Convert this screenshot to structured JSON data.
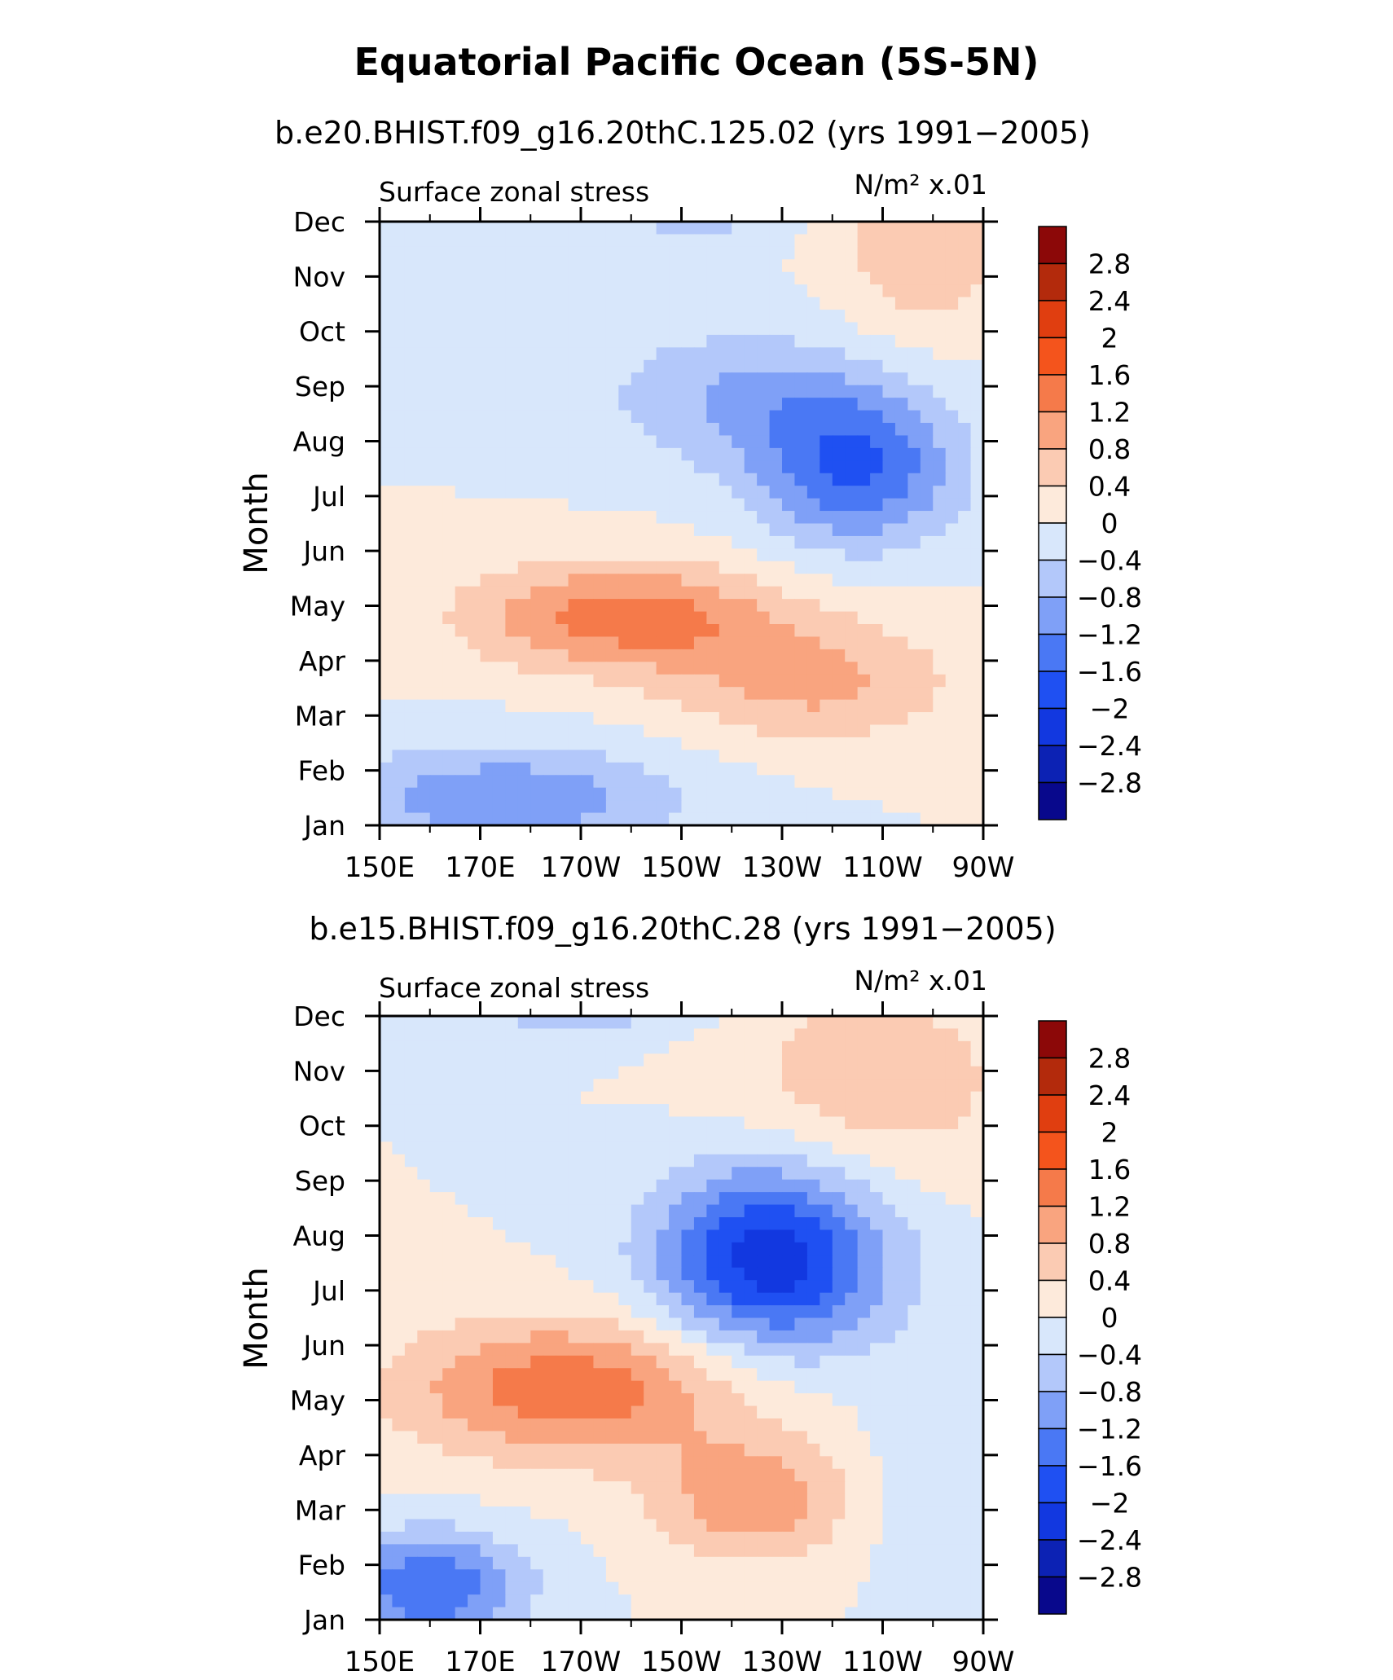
{
  "figure_title": "Equatorial Pacific Ocean (5S-5N)",
  "chart_data": [
    {
      "type": "heatmap",
      "title": "b.e20.BHIST.f09_g16.20thC.125.02 (yrs 1991−2005)",
      "left_label": "Surface zonal stress",
      "right_label": "N/m² x.01",
      "xlabel": "",
      "ylabel": "Month",
      "x_ticklabels": [
        "150E",
        "170E",
        "170W",
        "150W",
        "130W",
        "110W",
        "90W"
      ],
      "x_degrees_east": [
        150,
        170,
        190,
        210,
        230,
        250,
        270
      ],
      "xlim": [
        150,
        270
      ],
      "y_ticklabels": [
        "Jan",
        "Feb",
        "Mar",
        "Apr",
        "May",
        "Jun",
        "Jul",
        "Aug",
        "Sep",
        "Oct",
        "Nov",
        "Dec"
      ],
      "colorbar_labels": [
        "2.8",
        "2.4",
        "2",
        "1.6",
        "1.2",
        "0.8",
        "0.4",
        "0",
        "−0.4",
        "−0.8",
        "−1.2",
        "−1.6",
        "−2",
        "−2.4",
        "−2.8"
      ],
      "levels": [
        -2.8,
        -2.4,
        -2,
        -1.6,
        -1.2,
        -0.8,
        -0.4,
        0,
        0.4,
        0.8,
        1.2,
        1.6,
        2,
        2.4,
        2.8
      ],
      "colors": [
        "#08088c",
        "#0c22b4",
        "#1238e0",
        "#1f50f2",
        "#4a78f4",
        "#7fa0f7",
        "#b3c8fa",
        "#d8e7fb",
        "#fdeadb",
        "#fbcbb3",
        "#f9a47f",
        "#f57a4a",
        "#f4541c",
        "#e03e10",
        "#b32a0c",
        "#8c0808"
      ],
      "features": [
        {
          "x": 162,
          "y": 11.6,
          "sx": 10,
          "sy": 0.5,
          "amp": -0.6
        },
        {
          "x": 212,
          "y": 11.3,
          "sx": 12,
          "sy": 0.6,
          "amp": -0.6
        },
        {
          "x": 258,
          "y": 10.5,
          "sx": 12,
          "sy": 1.2,
          "amp": 0.7
        },
        {
          "x": 222,
          "y": 7.8,
          "sx": 20,
          "sy": 0.9,
          "amp": -0.8
        },
        {
          "x": 245,
          "y": 6.5,
          "sx": 14,
          "sy": 1.0,
          "amp": -1.6
        },
        {
          "x": 198,
          "y": 3.8,
          "sx": 22,
          "sy": 0.7,
          "amp": 1.4
        },
        {
          "x": 236,
          "y": 2.6,
          "sx": 20,
          "sy": 0.8,
          "amp": 0.9
        },
        {
          "x": 175,
          "y": 0.5,
          "sx": 25,
          "sy": 0.7,
          "amp": -1.1
        }
      ]
    },
    {
      "type": "heatmap",
      "title": "b.e15.BHIST.f09_g16.20thC.28 (yrs 1991−2005)",
      "left_label": "Surface zonal stress",
      "right_label": "N/m² x.01",
      "xlabel": "",
      "ylabel": "Month",
      "x_ticklabels": [
        "150E",
        "170E",
        "170W",
        "150W",
        "130W",
        "110W",
        "90W"
      ],
      "x_degrees_east": [
        150,
        170,
        190,
        210,
        230,
        250,
        270
      ],
      "xlim": [
        150,
        270
      ],
      "y_ticklabels": [
        "Jan",
        "Feb",
        "Mar",
        "Apr",
        "May",
        "Jun",
        "Jul",
        "Aug",
        "Sep",
        "Oct",
        "Nov",
        "Dec"
      ],
      "colorbar_labels": [
        "2.8",
        "2.4",
        "2",
        "1.6",
        "1.2",
        "0.8",
        "0.4",
        "0",
        "−0.4",
        "−0.8",
        "−1.2",
        "−1.6",
        "−2",
        "−2.4",
        "−2.8"
      ],
      "levels": [
        -2.8,
        -2.4,
        -2,
        -1.6,
        -1.2,
        -0.8,
        -0.4,
        0,
        0.4,
        0.8,
        1.2,
        1.6,
        2,
        2.4,
        2.8
      ],
      "colors": [
        "#08088c",
        "#0c22b4",
        "#1238e0",
        "#1f50f2",
        "#4a78f4",
        "#7fa0f7",
        "#b3c8fa",
        "#d8e7fb",
        "#fdeadb",
        "#fbcbb3",
        "#f9a47f",
        "#f57a4a",
        "#f4541c",
        "#e03e10",
        "#b32a0c",
        "#8c0808"
      ],
      "features": [
        {
          "x": 190,
          "y": 11.6,
          "sx": 16,
          "sy": 0.6,
          "amp": -1.1
        },
        {
          "x": 248,
          "y": 9.8,
          "sx": 20,
          "sy": 1.3,
          "amp": 0.7
        },
        {
          "x": 228,
          "y": 6.6,
          "sx": 16,
          "sy": 1.2,
          "amp": -2.3
        },
        {
          "x": 188,
          "y": 4.2,
          "sx": 24,
          "sy": 0.9,
          "amp": 1.5
        },
        {
          "x": 224,
          "y": 2.2,
          "sx": 14,
          "sy": 0.8,
          "amp": 1.1
        },
        {
          "x": 160,
          "y": 0.6,
          "sx": 13,
          "sy": 0.7,
          "amp": -1.6
        },
        {
          "x": 262,
          "y": 2.5,
          "sx": 10,
          "sy": 1.5,
          "amp": -0.4
        }
      ]
    }
  ]
}
